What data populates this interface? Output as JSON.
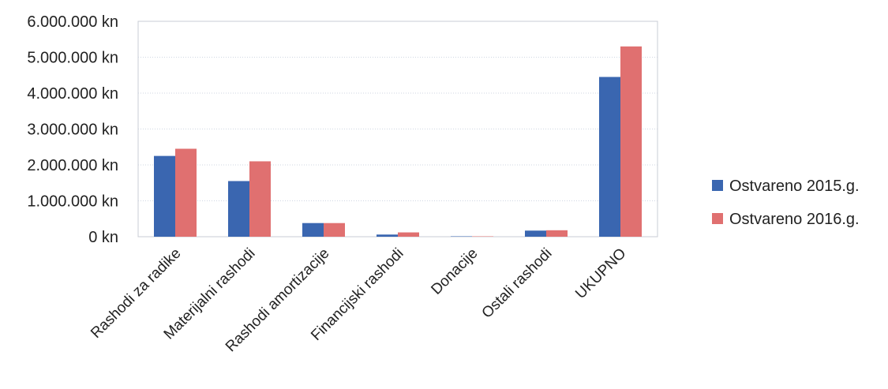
{
  "chart_data": {
    "type": "bar",
    "title": "",
    "xlabel": "",
    "ylabel": "",
    "categories": [
      "Rashodi za radike",
      "Materijalni rashodi",
      "Rashodi amortizacije",
      "Financijski rashodi",
      "Donacije",
      "Ostali rashodi",
      "UKUPNO"
    ],
    "series": [
      {
        "name": "Ostvareno 2015.g.",
        "color": "#3a66b0",
        "values": [
          2250000,
          1550000,
          380000,
          60000,
          0,
          170000,
          4450000
        ]
      },
      {
        "name": "Ostvareno 2016.g.",
        "color": "#e07070",
        "values": [
          2450000,
          2100000,
          380000,
          120000,
          0,
          180000,
          5300000
        ]
      }
    ],
    "y_ticks": [
      0,
      1000000,
      2000000,
      3000000,
      4000000,
      5000000,
      6000000
    ],
    "y_tick_labels": [
      "0 kn",
      "1.000.000 kn",
      "2.000.000 kn",
      "3.000.000 kn",
      "4.000.000 kn",
      "5.000.000 kn",
      "6.000.000 kn"
    ],
    "ylim": [
      0,
      6000000
    ],
    "grid": true,
    "legend_position": "right"
  }
}
